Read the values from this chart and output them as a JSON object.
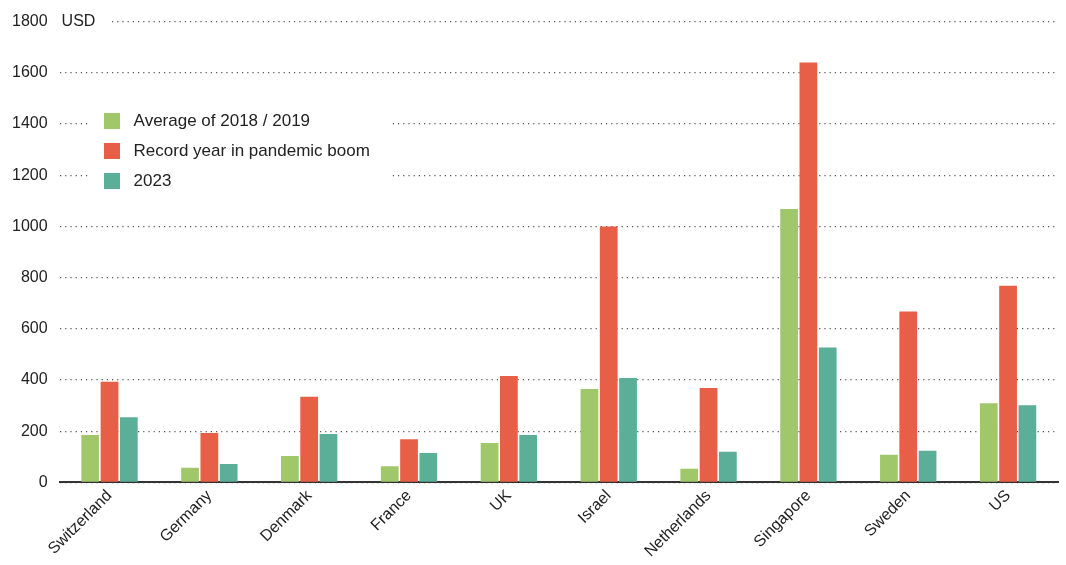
{
  "chart_data": {
    "type": "bar",
    "ylabel": "USD",
    "categories": [
      "Switzerland",
      "Germany",
      "Denmark",
      "France",
      "UK",
      "Israel",
      "Netherlands",
      "Singapore",
      "Sweden",
      "US"
    ],
    "series": [
      {
        "name": "Average of 2018 / 2019",
        "color": "#a0c86a",
        "values": [
          185,
          57,
          103,
          63,
          154,
          365,
          53,
          1068,
          108,
          309
        ]
      },
      {
        "name": "Record year in pandemic boom",
        "color": "#e85f47",
        "values": [
          393,
          193,
          335,
          169,
          416,
          1000,
          369,
          1640,
          668,
          768
        ]
      },
      {
        "name": "2023",
        "color": "#5bae98",
        "values": [
          255,
          72,
          189,
          115,
          185,
          408,
          120,
          527,
          124,
          301
        ]
      }
    ],
    "ylim": [
      0,
      1800
    ],
    "yticks": [
      0,
      200,
      400,
      600,
      800,
      1000,
      1200,
      1400,
      1600,
      1800
    ],
    "grid": "y",
    "legend": "top left"
  }
}
